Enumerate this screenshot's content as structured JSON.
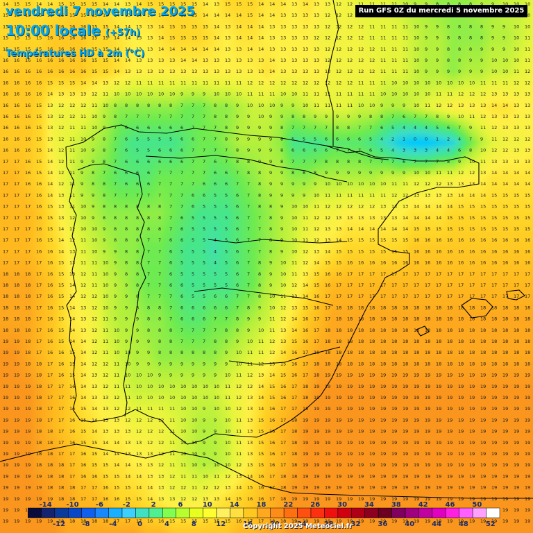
{
  "header": {
    "date_line": "vendredi 7 novembre 2025",
    "time_line": "10:00 locale",
    "time_offset": "(+57h)",
    "variable": "Températures HD à 2m (°C)",
    "run_info": "Run GFS 0Z du mercredi 5 novembre 2025"
  },
  "footer": {
    "copyright": "Copyright 2025 Meteociel.fr"
  },
  "legend": {
    "labels_top": [
      "-14",
      "-10",
      "-6",
      "-2",
      "2",
      "6",
      "10",
      "14",
      "18",
      "22",
      "26",
      "30",
      "34",
      "38",
      "42",
      "46",
      "50"
    ],
    "labels_bottom": [
      "-12",
      "-8",
      "-4",
      "0",
      "4",
      "8",
      "12",
      "16",
      "20",
      "24",
      "28",
      "32",
      "36",
      "40",
      "44",
      "48",
      "52"
    ],
    "colors": [
      "#0c0c3c",
      "#14246e",
      "#0a3a9a",
      "#0848c8",
      "#1060f0",
      "#1888ff",
      "#1ab0ff",
      "#3cd0ff",
      "#40e0c0",
      "#50f090",
      "#80ff50",
      "#b8ff30",
      "#e8ff20",
      "#ffff30",
      "#fff060",
      "#ffe040",
      "#ffc820",
      "#ffa820",
      "#ff8c18",
      "#ff7010",
      "#ff5010",
      "#ff3010",
      "#f01010",
      "#d00010",
      "#b00018",
      "#8c0020",
      "#6c0020",
      "#800060",
      "#a00080",
      "#c000a0",
      "#e000c0",
      "#ff20e0",
      "#ff60ff",
      "#ffa0ff",
      "#ffffff"
    ]
  },
  "map_labels": {
    "row_values": [
      [
        14,
        15,
        15,
        14,
        14,
        15,
        15,
        15,
        14,
        13,
        14,
        15,
        15,
        15,
        15,
        14,
        13,
        15,
        15,
        15,
        14,
        14,
        13,
        14,
        13,
        12,
        12,
        11,
        11,
        11,
        10,
        9,
        9,
        8,
        8,
        8,
        9,
        9,
        10,
        10,
        11
      ],
      [
        15,
        15,
        15,
        15,
        16,
        16,
        16,
        15,
        15,
        14,
        13,
        13,
        14,
        15,
        15,
        15,
        14,
        13,
        14,
        14,
        13,
        13,
        13,
        13,
        12,
        12,
        12,
        12,
        11,
        11,
        11,
        10,
        9,
        9,
        8,
        8,
        8,
        9,
        9,
        10,
        11
      ],
      [
        16,
        16,
        16,
        16,
        16,
        16,
        16,
        15,
        15,
        14,
        13,
        13,
        13,
        13,
        13,
        13,
        13,
        13,
        13,
        13,
        14,
        13,
        13,
        13,
        13,
        12,
        12,
        12,
        12,
        11,
        11,
        10,
        9,
        9,
        8,
        9,
        9,
        10,
        10,
        11,
        12
      ],
      [
        16,
        16,
        16,
        15,
        12,
        12,
        12,
        11,
        9,
        8,
        8,
        8,
        8,
        8,
        7,
        7,
        8,
        8,
        9,
        10,
        10,
        9,
        9,
        10,
        11,
        11,
        11,
        10,
        10,
        9,
        9,
        10,
        11,
        12,
        13,
        13,
        13,
        14,
        14,
        13,
        13
      ],
      [
        16,
        16,
        16,
        15,
        12,
        11,
        10,
        9,
        8,
        6,
        5,
        5,
        5,
        5,
        6,
        7,
        7,
        8,
        9,
        9,
        9,
        8,
        5,
        5,
        5,
        6,
        6,
        6,
        5,
        3,
        1,
        0,
        0,
        1,
        2,
        6,
        9,
        11,
        12,
        12,
        13
      ],
      [
        17,
        17,
        16,
        15,
        13,
        11,
        9,
        8,
        7,
        6,
        6,
        6,
        7,
        7,
        7,
        7,
        6,
        6,
        7,
        8,
        9,
        9,
        8,
        8,
        9,
        9,
        9,
        9,
        9,
        10,
        10,
        11,
        11,
        12,
        12,
        13,
        13,
        14,
        14,
        14,
        14
      ],
      [
        17,
        17,
        17,
        16,
        14,
        12,
        10,
        9,
        8,
        8,
        8,
        8,
        8,
        7,
        6,
        5,
        5,
        5,
        6,
        7,
        8,
        9,
        10,
        11,
        12,
        12,
        13,
        13,
        13,
        13,
        13,
        14,
        14,
        14,
        15,
        15,
        15,
        15,
        15,
        15,
        15
      ],
      [
        17,
        17,
        17,
        16,
        15,
        13,
        11,
        10,
        9,
        8,
        8,
        7,
        7,
        6,
        5,
        5,
        4,
        5,
        6,
        7,
        8,
        9,
        10,
        12,
        13,
        14,
        15,
        15,
        15,
        15,
        15,
        16,
        16,
        16,
        16,
        16,
        16,
        16,
        16,
        16,
        16
      ],
      [
        18,
        18,
        18,
        17,
        16,
        14,
        12,
        11,
        10,
        9,
        8,
        7,
        7,
        6,
        5,
        5,
        5,
        5,
        6,
        7,
        9,
        10,
        12,
        14,
        16,
        17,
        17,
        17,
        17,
        17,
        17,
        17,
        17,
        17,
        17,
        17,
        17,
        17,
        17,
        17,
        17
      ],
      [
        18,
        18,
        18,
        17,
        16,
        14,
        13,
        12,
        10,
        9,
        9,
        8,
        8,
        7,
        6,
        6,
        7,
        7,
        8,
        9,
        10,
        12,
        14,
        16,
        17,
        18,
        18,
        18,
        18,
        18,
        18,
        18,
        18,
        18,
        18,
        18,
        18,
        18,
        18,
        18,
        18
      ],
      [
        19,
        19,
        18,
        17,
        16,
        15,
        14,
        12,
        11,
        10,
        9,
        9,
        8,
        8,
        8,
        8,
        8,
        9,
        10,
        11,
        12,
        14,
        16,
        17,
        18,
        18,
        18,
        18,
        18,
        18,
        18,
        18,
        18,
        18,
        18,
        18,
        18,
        18,
        18,
        18,
        18
      ],
      [
        19,
        19,
        19,
        18,
        17,
        16,
        14,
        13,
        12,
        11,
        10,
        10,
        10,
        10,
        10,
        10,
        10,
        11,
        12,
        13,
        15,
        16,
        17,
        18,
        19,
        19,
        19,
        19,
        19,
        19,
        19,
        19,
        19,
        19,
        19,
        19,
        19,
        19,
        19,
        19,
        19
      ],
      [
        19,
        19,
        19,
        18,
        17,
        16,
        15,
        14,
        13,
        13,
        12,
        12,
        12,
        11,
        10,
        9,
        9,
        10,
        12,
        14,
        16,
        17,
        18,
        19,
        19,
        19,
        19,
        19,
        19,
        19,
        19,
        19,
        19,
        19,
        19,
        19,
        19,
        19,
        19,
        19,
        19
      ],
      [
        19,
        19,
        19,
        18,
        18,
        17,
        16,
        15,
        14,
        14,
        13,
        13,
        12,
        11,
        10,
        9,
        9,
        10,
        12,
        14,
        16,
        17,
        18,
        19,
        19,
        19,
        19,
        19,
        19,
        19,
        19,
        19,
        19,
        19,
        19,
        19,
        19,
        19,
        19,
        19,
        19
      ],
      [
        19,
        19,
        19,
        19,
        18,
        18,
        17,
        17,
        16,
        15,
        15,
        14,
        13,
        12,
        12,
        12,
        13,
        14,
        15,
        16,
        17,
        18,
        19,
        19,
        19,
        19,
        19,
        19,
        19,
        19,
        19,
        19,
        19,
        19,
        19,
        19,
        19,
        19,
        19,
        19,
        19
      ],
      [
        19,
        19,
        19,
        19,
        19,
        18,
        18,
        18,
        18,
        18,
        18,
        17,
        17,
        16,
        16,
        16,
        16,
        16,
        17,
        17,
        18,
        18,
        19,
        19,
        19,
        19,
        19,
        19,
        19,
        19,
        19,
        19,
        19,
        19,
        19,
        19,
        19,
        19,
        19,
        19,
        19
      ]
    ]
  }
}
